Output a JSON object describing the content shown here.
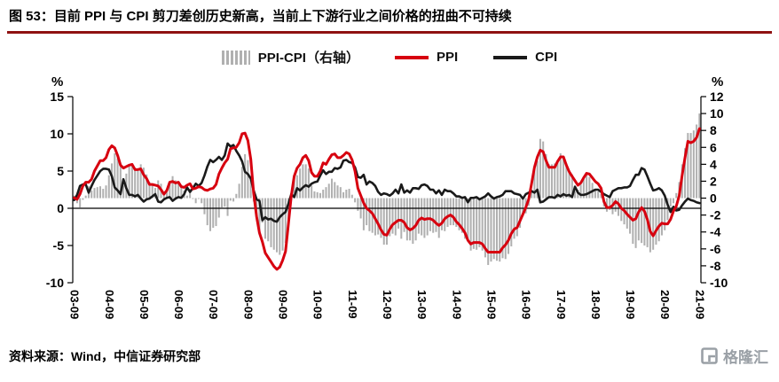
{
  "header": {
    "figure_title": "图 53：目前 PPI 与 CPI 剪刀差创历史新高，当前上下游行业之间价格的扭曲不可持续"
  },
  "footer": {
    "source": "资料来源：Wind，中信证券研究部",
    "logo_text": "格隆汇",
    "logo_icon": "gelonghui-grid-icon"
  },
  "colors": {
    "divider": "#8f1212",
    "bar": "#b0b0b0",
    "ppi": "#d7000f",
    "cpi": "#1a1a1a",
    "logo": "#9aa0a6",
    "axis": "#000000"
  },
  "chart_data": {
    "type": "combo",
    "title": "图 53：目前 PPI 与 CPI 剪刀差创历史新高，当前上下游行业之间价格的扭曲不可持续",
    "x_frequency": "monthly",
    "x_range": [
      "2003-09",
      "2021-09"
    ],
    "x_ticks_every_n_points": 12,
    "x_tick_labels": [
      "03-09",
      "04-09",
      "05-09",
      "06-09",
      "07-09",
      "08-09",
      "09-09",
      "10-09",
      "11-09",
      "12-09",
      "13-09",
      "14-09",
      "15-09",
      "16-09",
      "17-09",
      "18-09",
      "19-09",
      "20-09",
      "21-09"
    ],
    "left_axis": {
      "label": "%",
      "min": -10,
      "max": 15,
      "ticks": [
        15,
        10,
        5,
        0,
        -5,
        -10
      ]
    },
    "right_axis": {
      "label": "%",
      "min": -10,
      "max": 12,
      "ticks": [
        12,
        10,
        8,
        6,
        4,
        2,
        0,
        -2,
        -4,
        -6,
        -8,
        -10
      ]
    },
    "grid": false,
    "legend_position": "top",
    "series": [
      {
        "name": "PPI-CPI（右轴）",
        "type": "bar",
        "axis": "right",
        "color": "#b0b0b0",
        "derived": "PPI minus CPI, computed per month"
      },
      {
        "name": "PPI",
        "type": "line",
        "axis": "left",
        "color": "#d7000f",
        "values": [
          1.4,
          1.2,
          1.9,
          3.0,
          3.5,
          3.5,
          3.9,
          5.0,
          5.7,
          6.4,
          6.4,
          6.8,
          7.9,
          8.4,
          8.1,
          7.1,
          5.8,
          5.4,
          5.6,
          5.8,
          5.9,
          5.2,
          5.2,
          5.3,
          4.5,
          4.0,
          3.2,
          3.2,
          3.1,
          3.0,
          2.5,
          1.9,
          2.4,
          3.5,
          3.6,
          3.4,
          3.5,
          2.9,
          2.8,
          3.1,
          3.3,
          2.6,
          2.7,
          2.9,
          2.8,
          2.5,
          2.4,
          2.6,
          2.7,
          3.2,
          4.6,
          5.4,
          6.1,
          6.6,
          8.0,
          8.1,
          8.2,
          8.8,
          10.0,
          10.1,
          9.1,
          6.6,
          2.0,
          -1.1,
          -3.3,
          -4.5,
          -6.0,
          -6.6,
          -7.2,
          -7.8,
          -8.2,
          -7.9,
          -7.0,
          -5.8,
          -2.1,
          1.7,
          4.3,
          5.4,
          5.9,
          6.8,
          7.1,
          6.4,
          4.8,
          4.3,
          4.3,
          5.0,
          6.1,
          5.9,
          6.6,
          7.2,
          7.3,
          6.8,
          6.8,
          7.1,
          7.5,
          7.3,
          6.5,
          5.0,
          2.7,
          1.7,
          0.7,
          0.0,
          -0.3,
          -0.7,
          -1.4,
          -2.1,
          -2.9,
          -3.5,
          -3.6,
          -2.8,
          -2.2,
          -1.9,
          -1.6,
          -1.6,
          -1.9,
          -2.6,
          -2.9,
          -2.7,
          -2.3,
          -1.6,
          -1.3,
          -1.5,
          -1.4,
          -1.4,
          -1.6,
          -2.0,
          -2.3,
          -2.0,
          -1.4,
          -1.1,
          -0.9,
          -1.2,
          -1.8,
          -2.2,
          -2.7,
          -3.3,
          -4.3,
          -4.8,
          -4.6,
          -4.6,
          -4.6,
          -4.8,
          -5.4,
          -5.9,
          -5.9,
          -5.9,
          -5.9,
          -5.9,
          -5.3,
          -4.9,
          -4.3,
          -3.4,
          -2.8,
          -2.6,
          -1.7,
          -0.8,
          0.1,
          1.2,
          3.3,
          5.5,
          6.9,
          7.8,
          7.6,
          6.4,
          5.5,
          5.5,
          5.5,
          6.3,
          6.9,
          6.9,
          5.8,
          4.9,
          4.3,
          3.7,
          3.1,
          3.4,
          4.1,
          4.7,
          4.6,
          4.1,
          3.6,
          3.3,
          2.7,
          0.9,
          0.1,
          0.1,
          0.4,
          0.9,
          0.6,
          0.0,
          -0.3,
          -0.8,
          -1.2,
          -1.6,
          -1.4,
          -0.5,
          0.1,
          -0.4,
          -1.5,
          -3.1,
          -3.7,
          -3.0,
          -2.4,
          -2.0,
          -2.1,
          -2.1,
          -1.5,
          -0.4,
          0.3,
          1.7,
          4.4,
          6.8,
          9.0,
          8.8,
          9.0,
          9.5,
          10.7
        ]
      },
      {
        "name": "CPI",
        "type": "line",
        "axis": "left",
        "color": "#1a1a1a",
        "values": [
          1.1,
          1.8,
          3.0,
          3.2,
          3.2,
          2.1,
          3.0,
          3.8,
          4.4,
          5.0,
          5.3,
          5.3,
          5.2,
          4.3,
          2.8,
          2.4,
          1.9,
          3.9,
          2.7,
          1.8,
          1.8,
          1.6,
          1.8,
          1.3,
          0.9,
          1.2,
          1.3,
          1.6,
          1.9,
          0.9,
          0.8,
          1.2,
          1.4,
          1.5,
          1.0,
          1.3,
          1.5,
          1.4,
          1.9,
          2.8,
          2.2,
          2.7,
          3.3,
          3.0,
          3.4,
          4.4,
          5.6,
          6.5,
          6.2,
          6.5,
          6.9,
          6.5,
          7.1,
          8.7,
          8.3,
          8.5,
          7.7,
          7.1,
          6.3,
          4.9,
          4.6,
          4.0,
          2.4,
          1.2,
          1.0,
          -1.6,
          -1.2,
          -1.5,
          -1.4,
          -1.7,
          -1.8,
          -1.2,
          -0.8,
          -0.5,
          0.6,
          1.9,
          1.5,
          2.7,
          2.4,
          2.8,
          3.1,
          2.9,
          3.3,
          3.5,
          3.6,
          4.4,
          5.1,
          4.6,
          4.9,
          4.9,
          5.4,
          5.3,
          5.5,
          6.4,
          6.5,
          6.2,
          6.1,
          5.5,
          4.2,
          4.1,
          4.5,
          3.2,
          3.6,
          3.4,
          3.0,
          2.2,
          1.8,
          2.0,
          1.9,
          1.7,
          2.0,
          2.5,
          2.0,
          3.2,
          2.1,
          2.4,
          2.1,
          2.7,
          2.7,
          2.6,
          3.1,
          3.2,
          3.0,
          2.5,
          2.5,
          2.0,
          2.4,
          1.8,
          2.5,
          2.3,
          2.3,
          2.0,
          1.6,
          1.6,
          1.4,
          1.5,
          0.8,
          1.4,
          1.4,
          1.5,
          1.2,
          1.4,
          1.6,
          2.0,
          1.6,
          1.3,
          1.5,
          1.6,
          1.8,
          2.3,
          2.3,
          2.3,
          2.0,
          1.9,
          1.8,
          1.3,
          1.9,
          2.1,
          2.3,
          2.1,
          2.5,
          0.8,
          0.9,
          1.2,
          1.5,
          1.5,
          1.4,
          1.8,
          1.6,
          1.9,
          1.7,
          1.8,
          1.5,
          2.9,
          2.1,
          1.8,
          1.8,
          1.9,
          2.1,
          2.3,
          2.5,
          2.5,
          2.2,
          1.9,
          1.7,
          1.5,
          2.3,
          2.5,
          2.7,
          2.7,
          2.8,
          2.8,
          3.0,
          3.8,
          4.5,
          4.5,
          5.4,
          5.2,
          4.3,
          3.3,
          2.4,
          2.5,
          2.7,
          2.4,
          1.7,
          0.5,
          -0.5,
          0.2,
          -0.3,
          -0.2,
          0.4,
          0.9,
          1.3,
          1.1,
          1.0,
          0.8,
          0.7
        ]
      }
    ]
  }
}
